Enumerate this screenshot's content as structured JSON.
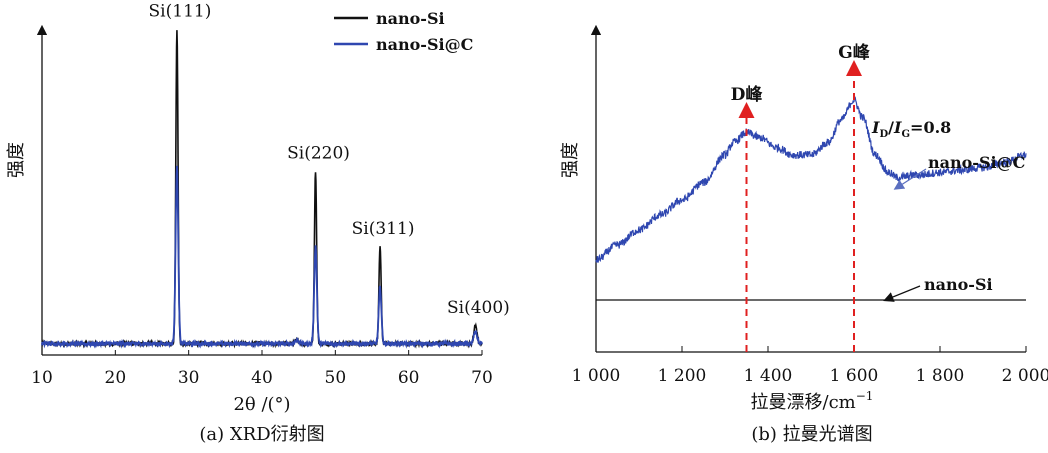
{
  "chart_data": [
    {
      "type": "line",
      "caption": "(a) XRD衍射图",
      "xlabel": "2θ /(°)",
      "ylabel": "强度",
      "xlim": [
        10,
        70
      ],
      "xticks": [
        10,
        20,
        30,
        40,
        50,
        60,
        70
      ],
      "legend": {
        "placement": "top-right",
        "entries": [
          "nano-Si",
          "nano-Si@C"
        ]
      },
      "series": [
        {
          "name": "nano-Si",
          "color": "#111111",
          "baseline": 2,
          "peaks": [
            {
              "x": 28.4,
              "height": 100,
              "width": 0.15
            },
            {
              "x": 47.3,
              "height": 55,
              "width": 0.15
            },
            {
              "x": 56.1,
              "height": 31,
              "width": 0.15
            },
            {
              "x": 69.1,
              "height": 6,
              "width": 0.2
            },
            {
              "x": 44.8,
              "height": 1,
              "width": 0.3
            }
          ]
        },
        {
          "name": "nano-Si@C",
          "color": "#2f47b0",
          "baseline": 2,
          "peaks": [
            {
              "x": 28.4,
              "height": 56,
              "width": 0.18
            },
            {
              "x": 47.3,
              "height": 31,
              "width": 0.18
            },
            {
              "x": 56.1,
              "height": 18,
              "width": 0.18
            },
            {
              "x": 69.1,
              "height": 4,
              "width": 0.22
            },
            {
              "x": 44.8,
              "height": 1,
              "width": 0.3
            }
          ]
        }
      ],
      "annotations": [
        {
          "text": "Si(111)",
          "x": 28.4
        },
        {
          "text": "Si(220)",
          "x": 47.3
        },
        {
          "text": "Si(311)",
          "x": 56.1
        },
        {
          "text": "Si(400)",
          "x": 69.1
        }
      ]
    },
    {
      "type": "line",
      "caption": "(b) 拉曼光谱图",
      "xlabel": "拉曼漂移/cm",
      "xlabel_sup": "−1",
      "ylabel": "强度",
      "xlim": [
        1000,
        2000
      ],
      "xticks": [
        1000,
        1200,
        1400,
        1600,
        1800,
        2000
      ],
      "xtick_labels": [
        "1 000",
        "1 200",
        "1 400",
        "1 600",
        "1 800",
        "2 000"
      ],
      "series": [
        {
          "name": "nano-Si@C",
          "color": "#2f47b0",
          "points": [
            [
              1000,
              16
            ],
            [
              1050,
              22
            ],
            [
              1100,
              28
            ],
            [
              1150,
              34
            ],
            [
              1200,
              40
            ],
            [
              1250,
              47
            ],
            [
              1300,
              58
            ],
            [
              1320,
              63
            ],
            [
              1350,
              67
            ],
            [
              1380,
              65
            ],
            [
              1420,
              61
            ],
            [
              1460,
              58
            ],
            [
              1500,
              58
            ],
            [
              1540,
              63
            ],
            [
              1570,
              72
            ],
            [
              1600,
              80
            ],
            [
              1620,
              73
            ],
            [
              1650,
              58
            ],
            [
              1680,
              51
            ],
            [
              1700,
              49
            ],
            [
              1750,
              50
            ],
            [
              1800,
              51
            ],
            [
              1850,
              52
            ],
            [
              1900,
              53
            ],
            [
              1950,
              55
            ],
            [
              2000,
              58
            ]
          ]
        },
        {
          "name": "nano-Si",
          "color": "#111111",
          "points": [
            [
              1000,
              0
            ],
            [
              2000,
              0
            ]
          ]
        }
      ],
      "peaks": [
        {
          "label": "D峰",
          "x": 1350
        },
        {
          "label": "G峰",
          "x": 1600
        }
      ],
      "ratio_annotation": {
        "I1": "I",
        "sub1": "D",
        "slash": "/",
        "I2": "I",
        "sub2": "G",
        "value": "=0.8"
      },
      "series_labels": [
        "nano-Si@C",
        "nano-Si"
      ]
    }
  ]
}
